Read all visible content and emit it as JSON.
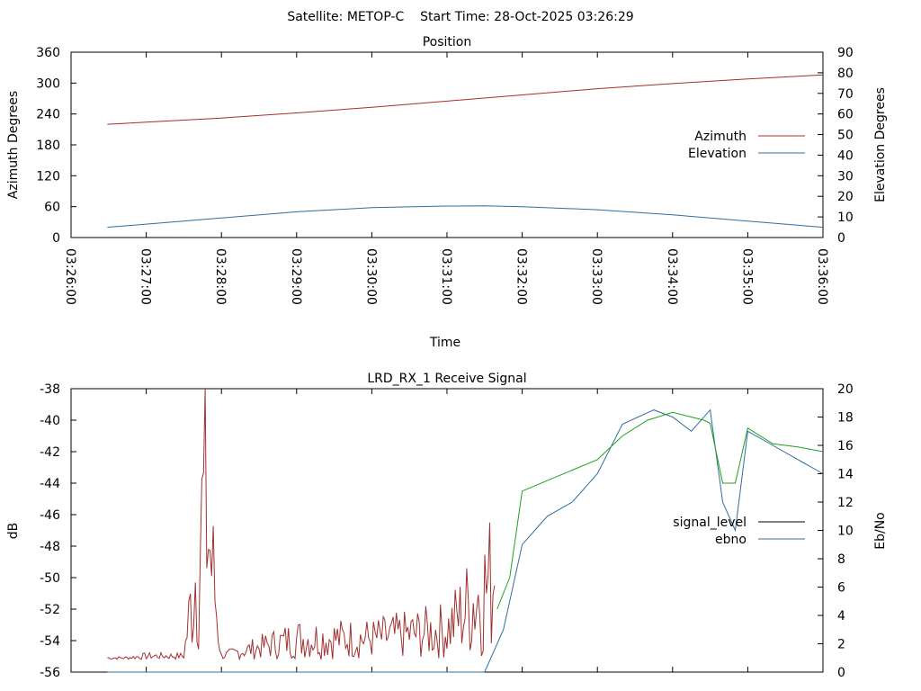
{
  "header": {
    "text": "Satellite: METOP-C    Start Time: 28-Oct-2025 03:26:29"
  },
  "chart_data": [
    {
      "type": "line",
      "title": "Position",
      "xlabel": "Time",
      "ylabel": "Azimuth Degrees",
      "y2label": "Elevation Degrees",
      "xlim": [
        "03:26:00",
        "03:36:00"
      ],
      "ylim": [
        0,
        360
      ],
      "y2lim": [
        0,
        90
      ],
      "xticks": [
        "03:26:00",
        "03:27:00",
        "03:28:00",
        "03:29:00",
        "03:30:00",
        "03:31:00",
        "03:32:00",
        "03:33:00",
        "03:34:00",
        "03:35:00",
        "03:36:00"
      ],
      "yticks": [
        "0",
        "60",
        "120",
        "180",
        "240",
        "300",
        "360"
      ],
      "y2ticks": [
        "0",
        "10",
        "20",
        "30",
        "40",
        "50",
        "60",
        "70",
        "80",
        "90"
      ],
      "legend_position": "right",
      "grid": false,
      "series": [
        {
          "name": "Azimuth",
          "axis": "y",
          "color": "#a0302f",
          "x": [
            "03:26:29",
            "03:27:00",
            "03:28:00",
            "03:29:00",
            "03:30:00",
            "03:31:00",
            "03:32:00",
            "03:33:00",
            "03:34:00",
            "03:35:00",
            "03:36:00"
          ],
          "values": [
            220,
            224,
            232,
            242,
            253,
            265,
            277,
            289,
            299,
            308,
            316
          ]
        },
        {
          "name": "Elevation",
          "axis": "y2",
          "color": "#2f6f9f",
          "x": [
            "03:26:29",
            "03:27:00",
            "03:28:00",
            "03:29:00",
            "03:30:00",
            "03:31:00",
            "03:31:30",
            "03:32:00",
            "03:33:00",
            "03:34:00",
            "03:35:00",
            "03:36:00"
          ],
          "values": [
            5,
            6.5,
            9.5,
            12.5,
            14.5,
            15.3,
            15.4,
            15,
            13.5,
            11,
            8,
            5
          ]
        }
      ]
    },
    {
      "type": "line",
      "title": "LRD_RX_1 Receive Signal",
      "ylabel": "dB",
      "y2label": "Eb/No",
      "xlim": [
        "03:26:00",
        "03:36:00"
      ],
      "ylim": [
        -56,
        -38
      ],
      "y2lim": [
        0,
        20
      ],
      "yticks": [
        "-56",
        "-54",
        "-52",
        "-50",
        "-48",
        "-46",
        "-44",
        "-42",
        "-40",
        "-38"
      ],
      "y2ticks": [
        "0",
        "2",
        "4",
        "6",
        "8",
        "10",
        "12",
        "14",
        "16",
        "18",
        "20"
      ],
      "legend_position": "right",
      "grid": false,
      "series": [
        {
          "name": "signal_level",
          "axis": "y",
          "color": "#000000",
          "x": [],
          "values": []
        },
        {
          "name": "ebno",
          "axis": "y2",
          "color": "#2f6f9f",
          "x": [
            "03:26:29",
            "03:31:30",
            "03:31:45",
            "03:32:00",
            "03:32:10",
            "03:32:20",
            "03:32:40",
            "03:33:00",
            "03:33:20",
            "03:33:45",
            "03:34:00",
            "03:34:15",
            "03:34:30",
            "03:34:40",
            "03:34:50",
            "03:35:00",
            "03:35:20",
            "03:35:40",
            "03:36:00"
          ],
          "values": [
            0,
            0,
            3,
            9,
            10,
            11,
            12,
            14,
            17.5,
            18.5,
            18,
            17,
            18.5,
            12,
            10,
            17,
            16,
            15,
            14
          ]
        },
        {
          "name": "",
          "axis": "y",
          "color": "#1f9f1f",
          "x": [
            "03:31:40",
            "03:31:50",
            "03:32:00",
            "03:32:30",
            "03:33:00",
            "03:33:20",
            "03:33:40",
            "03:34:00",
            "03:34:15",
            "03:34:25",
            "03:34:30",
            "03:34:40",
            "03:34:50",
            "03:35:00",
            "03:35:20",
            "03:35:40",
            "03:36:00"
          ],
          "values": [
            -52,
            -50,
            -44.5,
            -43.5,
            -42.5,
            -41,
            -40,
            -39.5,
            -39.8,
            -40,
            -40.2,
            -44,
            -44,
            -40.5,
            -41.5,
            -41.7,
            -42
          ]
        },
        {
          "name": "",
          "axis": "y",
          "color": "#a0302f",
          "noise": true,
          "x": [
            "03:26:29",
            "03:27:00",
            "03:27:30",
            "03:27:47",
            "03:28:00",
            "03:29:00",
            "03:30:00",
            "03:31:00",
            "03:31:38"
          ],
          "values": [
            -55.2,
            -55,
            -55,
            -46.2,
            -55,
            -54,
            -54,
            -53.5,
            -50.5
          ]
        }
      ]
    }
  ]
}
